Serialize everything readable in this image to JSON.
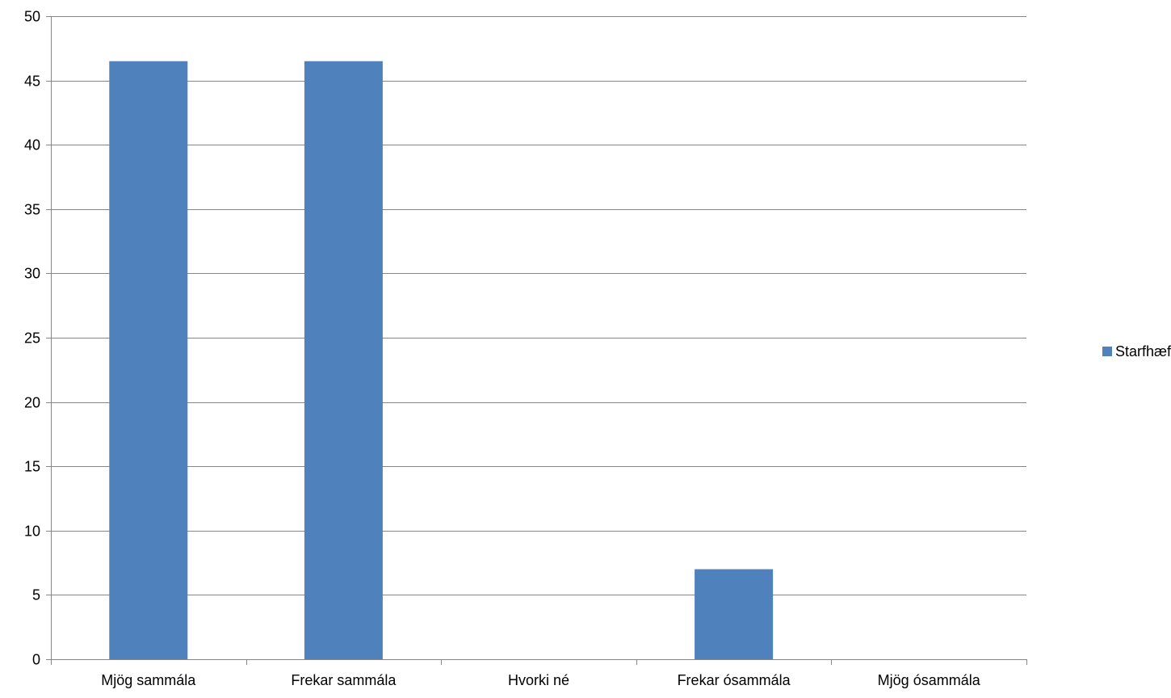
{
  "chart_data": {
    "type": "bar",
    "categories": [
      "Mjög sammála",
      "Frekar sammála",
      "Hvorki né",
      "Frekar ósammála",
      "Mjög ósammála"
    ],
    "series": [
      {
        "name": "Starfhæfni",
        "values": [
          46.5,
          46.5,
          0,
          7,
          0
        ],
        "color": "#4F81BD"
      }
    ],
    "ylim": [
      0,
      50
    ],
    "yticks": [
      0,
      5,
      10,
      15,
      20,
      25,
      30,
      35,
      40,
      45,
      50
    ],
    "grid": true,
    "legend_position": "right",
    "gridline_color": "#868686",
    "axis_color": "#868686"
  }
}
